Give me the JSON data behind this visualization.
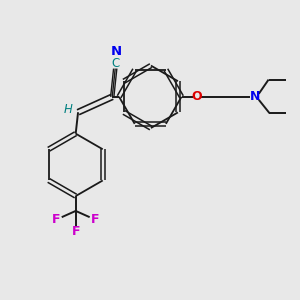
{
  "bg_color": "#e8e8e8",
  "bond_color": "#1a1a1a",
  "colors": {
    "N": "#0000ee",
    "O": "#dd0000",
    "F": "#cc00cc",
    "C_nitrile": "#008080",
    "H": "#008080",
    "C": "#1a1a1a"
  },
  "figsize": [
    3.0,
    3.0
  ],
  "dpi": 100,
  "xlim": [
    0,
    10
  ],
  "ylim": [
    0,
    10
  ]
}
